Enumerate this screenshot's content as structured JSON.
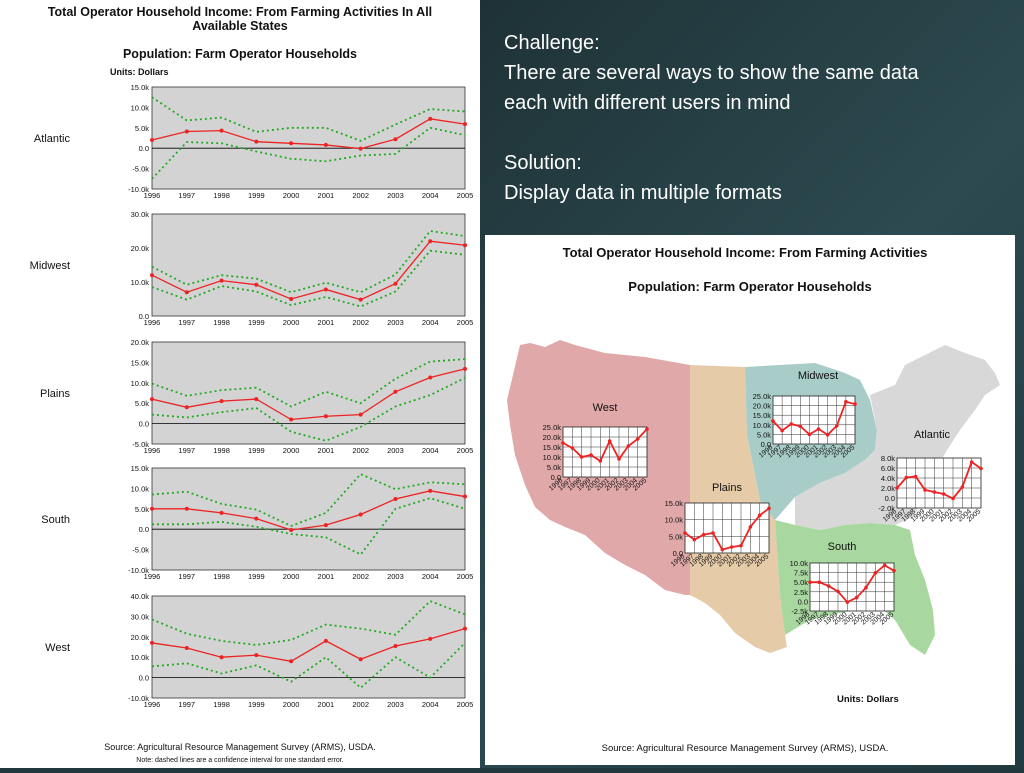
{
  "slide": {
    "challenge_label": "Challenge:",
    "challenge_text": "There are several ways to show the same data each with different users in mind",
    "solution_label": "Solution:",
    "solution_text": "Display data in multiple formats"
  },
  "left_figure": {
    "title_line1": "Total Operator Household Income: From Farming Activities  In All",
    "title_line2": "Available States",
    "subtitle": "Population: Farm Operator Households",
    "units": "Units: Dollars",
    "source": "Source: Agricultural Resource Management Survey (ARMS), USDA.",
    "note": "Note: dashed lines are a confidence interval for one standard error."
  },
  "right_figure": {
    "title": "Total Operator Household Income: From Farming Activities",
    "subtitle": "Population: Farm Operator Households",
    "units": "Units: Dollars",
    "source": "Source: Agricultural Resource Management Survey (ARMS), USDA."
  },
  "colors": {
    "estimate": "#ee2222",
    "confidence": "#22aa22",
    "plot_bg": "#d3d3d3",
    "west": "#e0a8a8",
    "plains": "#e6cba8",
    "midwest": "#a8ccc8",
    "atlantic": "#d8d8d8",
    "south": "#a8d8a0"
  },
  "chart_data": [
    {
      "type": "line",
      "region": "Atlantic",
      "x": [
        1996,
        1997,
        1998,
        1999,
        2000,
        2001,
        2002,
        2003,
        2004,
        2005
      ],
      "series": [
        {
          "values": [
            2.0,
            4.1,
            4.3,
            1.6,
            1.2,
            0.8,
            -0.1,
            2.2,
            7.2,
            5.9
          ]
        },
        {
          "values": [
            12.5,
            6.8,
            7.5,
            4.0,
            5.0,
            5.0,
            1.8,
            5.8,
            9.6,
            9.0
          ]
        },
        {
          "values": [
            -7.5,
            1.5,
            1.2,
            -0.8,
            -2.6,
            -3.2,
            -1.8,
            -1.4,
            5.0,
            3.2
          ]
        }
      ],
      "ylim": [
        -10,
        15
      ],
      "yticks": [
        "15.0k",
        "10.0k",
        "5.0k",
        "0.0",
        "-5.0k",
        "-10.0k"
      ]
    },
    {
      "type": "line",
      "region": "Midwest",
      "x": [
        1996,
        1997,
        1998,
        1999,
        2000,
        2001,
        2002,
        2003,
        2004,
        2005
      ],
      "series": [
        {
          "values": [
            12.0,
            7.0,
            10.4,
            9.2,
            5.0,
            7.8,
            4.8,
            9.5,
            22.0,
            20.8
          ]
        },
        {
          "values": [
            14.5,
            9.2,
            12.0,
            11.0,
            7.0,
            9.8,
            7.0,
            12.2,
            25.0,
            23.5
          ]
        },
        {
          "values": [
            8.5,
            4.8,
            8.8,
            7.2,
            3.2,
            5.6,
            2.8,
            7.2,
            19.2,
            18.0
          ]
        }
      ],
      "ylim": [
        0,
        30
      ],
      "yticks": [
        "30.0k",
        "20.0k",
        "10.0k",
        "0.0"
      ]
    },
    {
      "type": "line",
      "region": "Plains",
      "x": [
        1996,
        1997,
        1998,
        1999,
        2000,
        2001,
        2002,
        2003,
        2004,
        2005
      ],
      "series": [
        {
          "values": [
            6.0,
            4.0,
            5.5,
            6.0,
            1.0,
            1.8,
            2.2,
            7.8,
            11.3,
            13.4
          ]
        },
        {
          "values": [
            9.8,
            6.8,
            8.2,
            8.8,
            4.2,
            7.8,
            5.0,
            11.0,
            15.2,
            15.8
          ]
        },
        {
          "values": [
            2.2,
            1.5,
            2.8,
            3.8,
            -2.0,
            -4.2,
            -0.8,
            4.2,
            7.0,
            11.2
          ]
        }
      ],
      "ylim": [
        -5,
        20
      ],
      "yticks": [
        "20.0k",
        "15.0k",
        "10.0k",
        "5.0k",
        "0.0",
        "-5.0k"
      ]
    },
    {
      "type": "line",
      "region": "South",
      "x": [
        1996,
        1997,
        1998,
        1999,
        2000,
        2001,
        2002,
        2003,
        2004,
        2005
      ],
      "series": [
        {
          "values": [
            5.0,
            5.0,
            4.0,
            2.6,
            -0.2,
            1.0,
            3.6,
            7.4,
            9.4,
            8.0
          ]
        },
        {
          "values": [
            8.5,
            9.2,
            6.2,
            4.8,
            0.8,
            4.0,
            13.5,
            9.8,
            11.5,
            11.0
          ]
        },
        {
          "values": [
            1.2,
            1.2,
            1.8,
            0.6,
            -1.2,
            -2.0,
            -6.2,
            5.0,
            7.6,
            5.0
          ]
        }
      ],
      "ylim": [
        -10,
        15
      ],
      "yticks": [
        "15.0k",
        "10.0k",
        "5.0k",
        "0.0",
        "-5.0k",
        "-10.0k"
      ]
    },
    {
      "type": "line",
      "region": "West",
      "x": [
        1996,
        1997,
        1998,
        1999,
        2000,
        2001,
        2002,
        2003,
        2004,
        2005
      ],
      "series": [
        {
          "values": [
            17.0,
            14.5,
            10.0,
            11.0,
            8.0,
            18.0,
            9.0,
            15.5,
            19.0,
            24.0
          ]
        },
        {
          "values": [
            28.5,
            21.5,
            18.0,
            16.0,
            18.5,
            26.0,
            24.0,
            21.0,
            37.5,
            31.0
          ]
        },
        {
          "values": [
            5.5,
            7.0,
            2.0,
            6.0,
            -2.0,
            10.0,
            -5.0,
            10.0,
            0.0,
            17.0
          ]
        }
      ],
      "ylim": [
        -10,
        40
      ],
      "yticks": [
        "40.0k",
        "30.0k",
        "20.0k",
        "10.0k",
        "0.0",
        "-10.0k"
      ]
    }
  ],
  "map_chart_data": [
    {
      "region": "West",
      "values": [
        17.0,
        14.5,
        10.0,
        11.0,
        8.0,
        18.0,
        9.0,
        15.5,
        19.0,
        24.0
      ],
      "ylim": [
        0,
        25
      ],
      "yticks": [
        "25.0k",
        "20.0k",
        "15.0k",
        "10.0k",
        "5.0k",
        "0.0"
      ]
    },
    {
      "region": "Midwest",
      "values": [
        12.0,
        7.0,
        10.4,
        9.2,
        5.0,
        7.8,
        4.8,
        9.5,
        22.0,
        20.8
      ],
      "ylim": [
        0,
        25
      ],
      "yticks": [
        "25.0k",
        "20.0k",
        "15.0k",
        "10.0k",
        "5.0k",
        "0.0"
      ]
    },
    {
      "region": "Plains",
      "values": [
        6.0,
        4.0,
        5.5,
        6.0,
        1.0,
        1.8,
        2.2,
        7.8,
        11.3,
        13.4
      ],
      "ylim": [
        0,
        15
      ],
      "yticks": [
        "15.0k",
        "10.0k",
        "5.0k",
        "0.0"
      ]
    },
    {
      "region": "Atlantic",
      "values": [
        2.0,
        4.1,
        4.3,
        1.6,
        1.2,
        0.8,
        -0.1,
        2.2,
        7.2,
        5.9
      ],
      "ylim": [
        -2,
        8
      ],
      "yticks": [
        "8.0k",
        "6.0k",
        "4.0k",
        "2.0k",
        "0.0",
        "-2.0k"
      ]
    },
    {
      "region": "South",
      "values": [
        5.0,
        5.0,
        4.0,
        2.6,
        -0.2,
        1.0,
        3.6,
        7.4,
        9.4,
        8.0
      ],
      "ylim": [
        -2.5,
        10
      ],
      "yticks": [
        "10.0k",
        "7.5k",
        "5.0k",
        "2.5k",
        "0.0",
        "-2.5k"
      ]
    }
  ],
  "map_x_labels": [
    "1996",
    "1997",
    "1998",
    "1999",
    "2000",
    "2001",
    "2002",
    "2003",
    "2004",
    "2005"
  ]
}
